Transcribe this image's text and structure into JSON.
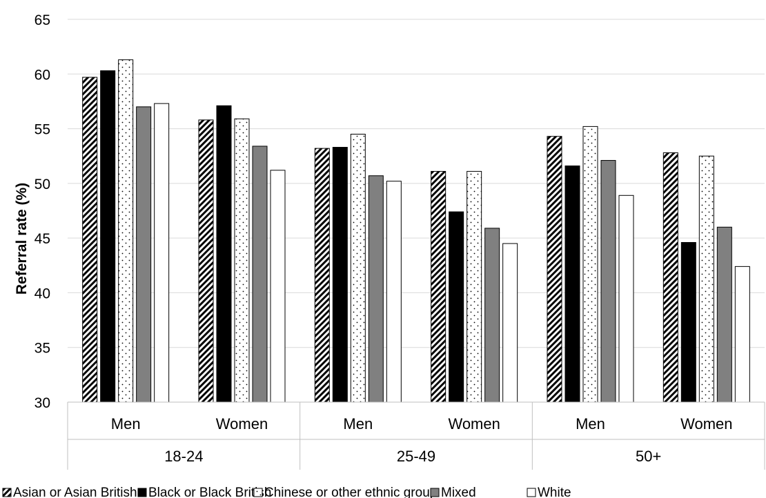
{
  "chart_data": {
    "type": "bar",
    "title": "",
    "xlabel": "",
    "ylabel": "Referral rate (%)",
    "ylim": [
      30,
      65
    ],
    "yticks": [
      30,
      35,
      40,
      45,
      50,
      55,
      60,
      65
    ],
    "grid": true,
    "legend_position": "bottom",
    "groups": [
      {
        "label": "18-24",
        "subgroups": [
          "Men",
          "Women"
        ]
      },
      {
        "label": "25-49",
        "subgroups": [
          "Men",
          "Women"
        ]
      },
      {
        "label": "50+",
        "subgroups": [
          "Men",
          "Women"
        ]
      }
    ],
    "categories": [
      "Men",
      "Women",
      "Men",
      "Women",
      "Men",
      "Women"
    ],
    "series": [
      {
        "name": "Asian or Asian British",
        "pattern": "hatch",
        "values": [
          59.7,
          55.8,
          53.2,
          51.1,
          54.3,
          52.8
        ]
      },
      {
        "name": "Black or Black British",
        "pattern": "solid-black",
        "values": [
          60.3,
          57.1,
          53.3,
          47.4,
          51.6,
          44.6
        ]
      },
      {
        "name": "Chinese or other ethnic group",
        "pattern": "dotted",
        "values": [
          61.3,
          55.9,
          54.5,
          51.1,
          55.2,
          52.5
        ]
      },
      {
        "name": "Mixed",
        "pattern": "solid-grey",
        "values": [
          57.0,
          53.4,
          50.7,
          45.9,
          52.1,
          46.0
        ]
      },
      {
        "name": "White",
        "pattern": "white",
        "values": [
          57.3,
          51.2,
          50.2,
          44.5,
          48.9,
          42.4
        ]
      }
    ]
  }
}
